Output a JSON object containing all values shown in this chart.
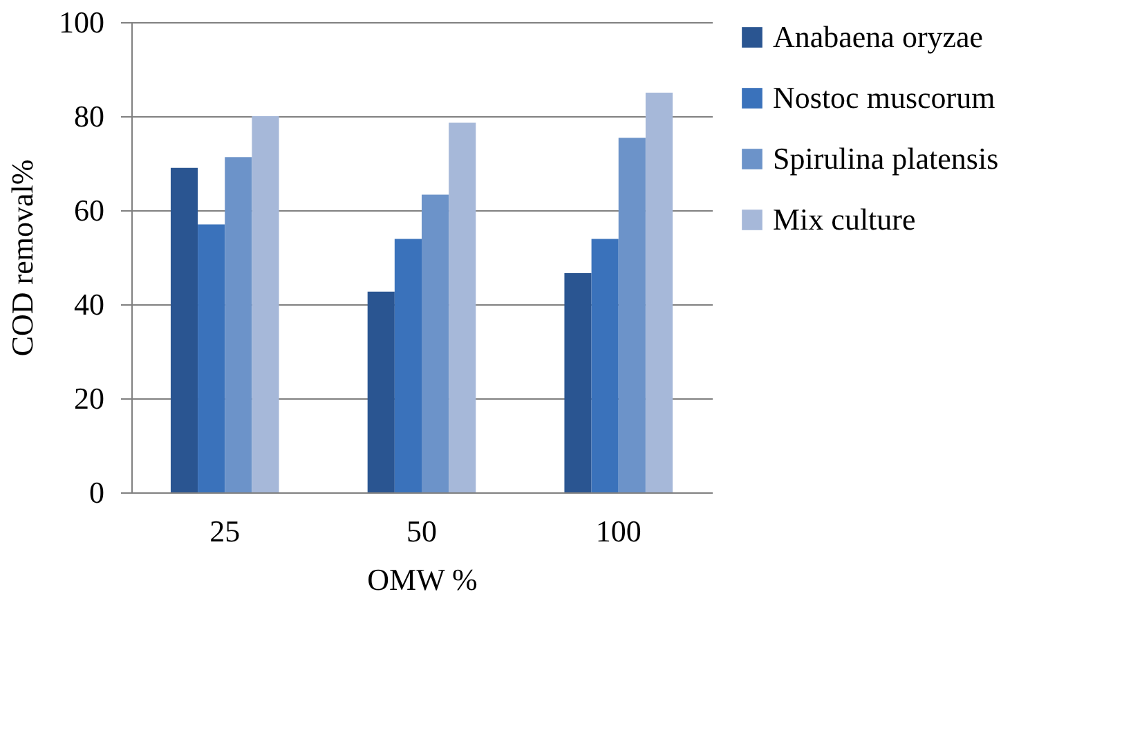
{
  "chart_data": {
    "type": "bar",
    "xlabel": "OMW %",
    "ylabel": "COD removal%",
    "categories": [
      "25",
      "50",
      "100"
    ],
    "series": [
      {
        "name": "Anabaena oryzae",
        "color": "#2a5591",
        "values": [
          69,
          42.7,
          46.6
        ]
      },
      {
        "name": "Nostoc muscorum",
        "color": "#3a72bb",
        "values": [
          57,
          53.9,
          53.9
        ]
      },
      {
        "name": "Spirulina platensis",
        "color": "#6c93c9",
        "values": [
          71.3,
          63.3,
          75.4
        ]
      },
      {
        "name": "Mix culture",
        "color": "#a6b8d9",
        "values": [
          80,
          78.6,
          85
        ]
      }
    ],
    "ylim": [
      0,
      100
    ],
    "yticks": [
      0,
      20,
      40,
      60,
      80,
      100
    ],
    "grid": "y",
    "legend": "right"
  }
}
